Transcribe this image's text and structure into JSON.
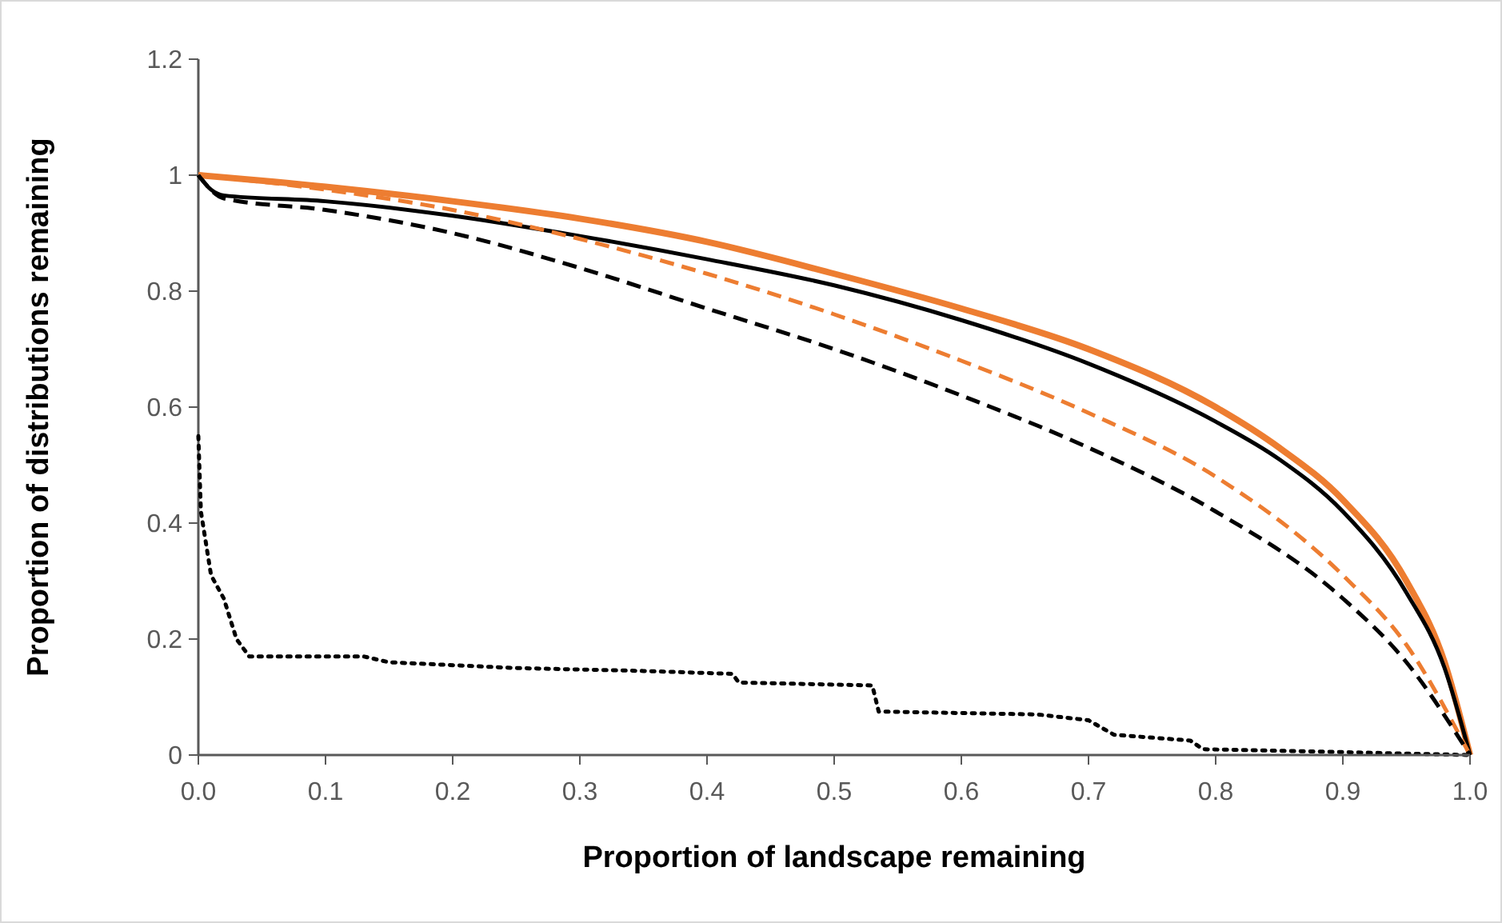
{
  "chart_data": {
    "type": "line",
    "xlabel": "Proportion of landscape remaining",
    "ylabel": "Proportion of distributions remaining",
    "xlim": [
      0,
      1
    ],
    "ylim": [
      0,
      1.2
    ],
    "xticks": [
      {
        "value": 0,
        "label": "0.0"
      },
      0.1,
      0.2,
      0.3,
      0.4,
      0.5,
      0.6,
      0.7,
      0.8,
      0.9,
      {
        "value": 1,
        "label": "1.0"
      }
    ],
    "yticks": [
      0,
      0.2,
      0.4,
      0.6,
      0.8,
      1,
      1.2
    ],
    "grid": false,
    "marker": "none",
    "series": [
      {
        "color": "#ed7d31",
        "line_style": "solid",
        "x": [
          0,
          0.1,
          0.2,
          0.3,
          0.4,
          0.5,
          0.6,
          0.7,
          0.8,
          0.85,
          0.9,
          0.95,
          0.98,
          1
        ],
        "values": [
          1,
          0.98,
          0.955,
          0.925,
          0.885,
          0.83,
          0.77,
          0.7,
          0.6,
          0.53,
          0.44,
          0.3,
          0.16,
          0
        ]
      },
      {
        "color": "#000000",
        "line_style": "solid",
        "x": [
          0,
          0.01,
          0.02,
          0.1,
          0.2,
          0.3,
          0.4,
          0.5,
          0.6,
          0.7,
          0.8,
          0.85,
          0.9,
          0.95,
          0.98,
          1
        ],
        "values": [
          1,
          0.975,
          0.965,
          0.955,
          0.93,
          0.895,
          0.855,
          0.81,
          0.75,
          0.675,
          0.575,
          0.51,
          0.42,
          0.28,
          0.15,
          0
        ]
      },
      {
        "color": "#ed7d31",
        "line_style": "dashed",
        "x": [
          0,
          0.1,
          0.2,
          0.3,
          0.4,
          0.5,
          0.6,
          0.7,
          0.8,
          0.9,
          0.95,
          1
        ],
        "values": [
          1,
          0.975,
          0.94,
          0.89,
          0.83,
          0.76,
          0.68,
          0.59,
          0.48,
          0.31,
          0.19,
          0
        ]
      },
      {
        "color": "#000000",
        "line_style": "dashed",
        "x": [
          0,
          0.02,
          0.1,
          0.2,
          0.3,
          0.4,
          0.5,
          0.6,
          0.7,
          0.8,
          0.9,
          0.95,
          1
        ],
        "values": [
          1,
          0.96,
          0.94,
          0.9,
          0.84,
          0.77,
          0.7,
          0.62,
          0.53,
          0.42,
          0.27,
          0.16,
          0
        ]
      },
      {
        "color": "#000000",
        "line_style": "dotted",
        "x": [
          0,
          0.002,
          0.01,
          0.02,
          0.03,
          0.04,
          0.13,
          0.15,
          0.25,
          0.35,
          0.42,
          0.425,
          0.53,
          0.535,
          0.66,
          0.7,
          0.72,
          0.78,
          0.79,
          0.9,
          1
        ],
        "values": [
          0.55,
          0.42,
          0.31,
          0.27,
          0.2,
          0.17,
          0.17,
          0.16,
          0.15,
          0.145,
          0.14,
          0.125,
          0.12,
          0.075,
          0.07,
          0.06,
          0.035,
          0.025,
          0.01,
          0.005,
          0
        ]
      }
    ]
  }
}
